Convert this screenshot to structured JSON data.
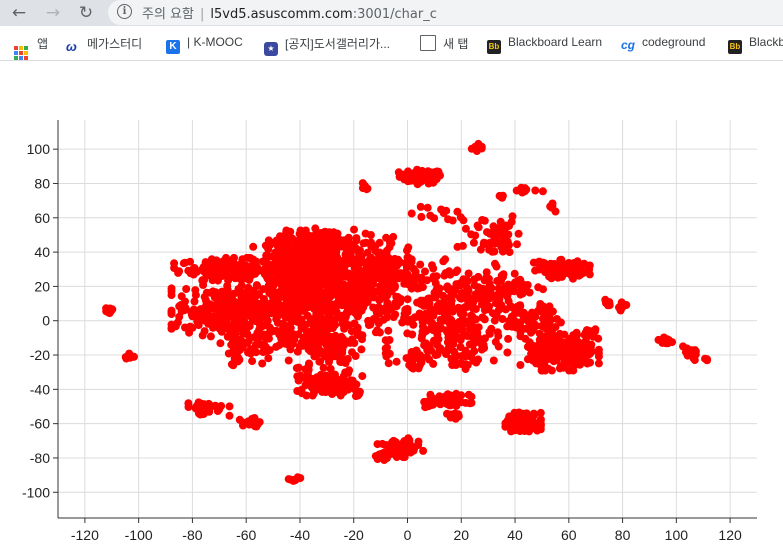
{
  "browser": {
    "back_icon": "arrow-left-icon",
    "forward_icon": "arrow-right-icon",
    "reload_icon": "reload-icon",
    "security_label": "주의 요함",
    "url_host": "l5vd5.asuscomm.com",
    "url_path": ":3001/char_c"
  },
  "bookmarks": [
    {
      "label": "앱",
      "icon": "apps-grid-icon"
    },
    {
      "label": "메가스터디",
      "icon": "megastudy-icon"
    },
    {
      "label": "| K-MOOC",
      "icon": "kmooc-icon"
    },
    {
      "label": "[공지]도서갤러리가...",
      "icon": "gallery-icon"
    },
    {
      "label": "새 탭",
      "icon": "page-icon"
    },
    {
      "label": "Blackboard Learn",
      "icon": "blackboard-icon"
    },
    {
      "label": "codeground",
      "icon": "codeground-icon"
    },
    {
      "label": "Blackb",
      "icon": "blackboard-icon"
    }
  ],
  "chart_data": {
    "type": "scatter",
    "title": "",
    "xlabel": "",
    "ylabel": "",
    "xlim": [
      -130,
      130
    ],
    "ylim": [
      -115,
      117
    ],
    "xticks": [
      -120,
      -100,
      -80,
      -60,
      -40,
      -20,
      0,
      20,
      40,
      60,
      80,
      100,
      120
    ],
    "yticks": [
      -100,
      -80,
      -60,
      -40,
      -20,
      0,
      20,
      40,
      60,
      80,
      100
    ],
    "grid": true,
    "point_color": "#ff0000",
    "clusters": [
      {
        "cx": 27,
        "cy": 101,
        "sx": 1.5,
        "sy": 1.5,
        "n": 10
      },
      {
        "cx": 5,
        "cy": 84,
        "sx": 4,
        "sy": 2,
        "n": 60
      },
      {
        "cx": -16,
        "cy": 78,
        "sx": 1,
        "sy": 1,
        "n": 5
      },
      {
        "cx": 44,
        "cy": 76,
        "sx": 3,
        "sy": 1,
        "n": 10
      },
      {
        "cx": 34,
        "cy": 72,
        "sx": 1,
        "sy": 1,
        "n": 4
      },
      {
        "cx": 54,
        "cy": 65,
        "sx": 1,
        "sy": 2,
        "n": 5
      },
      {
        "cx": 12,
        "cy": 62,
        "sx": 6,
        "sy": 2,
        "n": 12
      },
      {
        "cx": 30,
        "cy": 52,
        "sx": 6,
        "sy": 6,
        "n": 40
      },
      {
        "cx": 36,
        "cy": 44,
        "sx": 4,
        "sy": 3,
        "n": 20
      },
      {
        "cx": -67,
        "cy": 30,
        "sx": 9,
        "sy": 3,
        "n": 150
      },
      {
        "cx": -42,
        "cy": 35,
        "sx": 7,
        "sy": 8,
        "n": 220
      },
      {
        "cx": -30,
        "cy": 45,
        "sx": 5,
        "sy": 4,
        "n": 120
      },
      {
        "cx": -22,
        "cy": 20,
        "sx": 10,
        "sy": 14,
        "n": 450
      },
      {
        "cx": -38,
        "cy": 12,
        "sx": 7,
        "sy": 10,
        "n": 200
      },
      {
        "cx": -8,
        "cy": 30,
        "sx": 5,
        "sy": 7,
        "n": 80
      },
      {
        "cx": -68,
        "cy": 6,
        "sx": 9,
        "sy": 7,
        "n": 260
      },
      {
        "cx": -50,
        "cy": 0,
        "sx": 6,
        "sy": 8,
        "n": 60
      },
      {
        "cx": -30,
        "cy": -15,
        "sx": 6,
        "sy": 8,
        "n": 120
      },
      {
        "cx": -48,
        "cy": -12,
        "sx": 6,
        "sy": 6,
        "n": 40
      },
      {
        "cx": -63,
        "cy": -15,
        "sx": 3,
        "sy": 5,
        "n": 40
      },
      {
        "cx": -30,
        "cy": -37,
        "sx": 5,
        "sy": 3,
        "n": 130
      },
      {
        "cx": -18,
        "cy": -43,
        "sx": 1,
        "sy": 1,
        "n": 4
      },
      {
        "cx": 6,
        "cy": 18,
        "sx": 6,
        "sy": 7,
        "n": 30
      },
      {
        "cx": 20,
        "cy": 5,
        "sx": 10,
        "sy": 14,
        "n": 180
      },
      {
        "cx": 30,
        "cy": 20,
        "sx": 7,
        "sy": 6,
        "n": 40
      },
      {
        "cx": 10,
        "cy": 0,
        "sx": 6,
        "sy": 6,
        "n": 60
      },
      {
        "cx": 4,
        "cy": -18,
        "sx": 8,
        "sy": 6,
        "n": 40
      },
      {
        "cx": 2,
        "cy": -27,
        "sx": 1.5,
        "sy": 1,
        "n": 8
      },
      {
        "cx": 22,
        "cy": -15,
        "sx": 6,
        "sy": 5,
        "n": 30
      },
      {
        "cx": 45,
        "cy": 5,
        "sx": 5,
        "sy": 8,
        "n": 40
      },
      {
        "cx": 42,
        "cy": 20,
        "sx": 3,
        "sy": 2,
        "n": 10
      },
      {
        "cx": 59,
        "cy": 30,
        "sx": 4,
        "sy": 2.5,
        "n": 100
      },
      {
        "cx": 48,
        "cy": 32,
        "sx": 2,
        "sy": 2,
        "n": 10
      },
      {
        "cx": 58,
        "cy": -18,
        "sx": 6,
        "sy": 5,
        "n": 220
      },
      {
        "cx": 52,
        "cy": -5,
        "sx": 4,
        "sy": 6,
        "n": 40
      },
      {
        "cx": 68,
        "cy": -8,
        "sx": 2,
        "sy": 2,
        "n": 15
      },
      {
        "cx": 74,
        "cy": 10,
        "sx": 1,
        "sy": 1,
        "n": 6
      },
      {
        "cx": 80,
        "cy": 8,
        "sx": 1,
        "sy": 1.5,
        "n": 8
      },
      {
        "cx": 96,
        "cy": -12,
        "sx": 1.5,
        "sy": 1,
        "n": 8
      },
      {
        "cx": 105,
        "cy": -19,
        "sx": 2,
        "sy": 2,
        "n": 20
      },
      {
        "cx": 111,
        "cy": -23,
        "sx": 0.5,
        "sy": 0.5,
        "n": 3
      },
      {
        "cx": 43,
        "cy": -59,
        "sx": 3,
        "sy": 2.5,
        "n": 160
      },
      {
        "cx": 15,
        "cy": -47,
        "sx": 4,
        "sy": 2,
        "n": 60
      },
      {
        "cx": 18,
        "cy": -55,
        "sx": 1.5,
        "sy": 1,
        "n": 8
      },
      {
        "cx": -3,
        "cy": -74,
        "sx": 4,
        "sy": 2.5,
        "n": 70
      },
      {
        "cx": -10,
        "cy": -80,
        "sx": 1.5,
        "sy": 1.5,
        "n": 6
      },
      {
        "cx": -42,
        "cy": -93,
        "sx": 1,
        "sy": 1.5,
        "n": 8
      },
      {
        "cx": -75,
        "cy": -51,
        "sx": 4,
        "sy": 2,
        "n": 40
      },
      {
        "cx": -60,
        "cy": -60,
        "sx": 3,
        "sy": 1.5,
        "n": 15
      },
      {
        "cx": -111,
        "cy": 6,
        "sx": 1,
        "sy": 1,
        "n": 8
      },
      {
        "cx": -103,
        "cy": -21,
        "sx": 1,
        "sy": 1,
        "n": 6
      }
    ]
  }
}
